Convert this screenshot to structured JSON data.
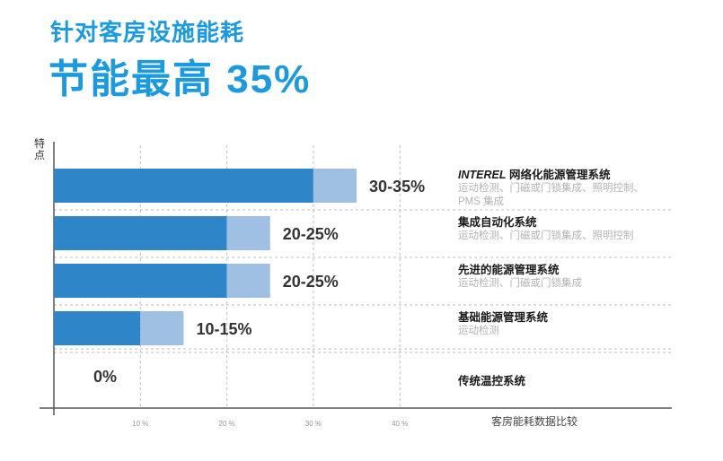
{
  "header": {
    "subtitle": "针对客房设施能耗",
    "headline": "节能最高 35%"
  },
  "colors": {
    "accent": "#1b9ae0",
    "bar_dark": "#2e86c8",
    "bar_light": "#9fbfe3",
    "grid": "#bdbdbd",
    "axis": "#555555"
  },
  "chart_data": {
    "type": "bar",
    "orientation": "horizontal",
    "stacked": true,
    "ylabel": "特点",
    "xlabel": "客房能耗数据比较",
    "xlim": [
      0,
      50
    ],
    "xticks": [
      10,
      20,
      30,
      40
    ],
    "xtick_labels": [
      "10 %",
      "20 %",
      "30 %",
      "40 %"
    ],
    "grid": true,
    "categories": [
      {
        "title_brand": "INTEREL",
        "title": " 网络化能源管理系统",
        "desc": "运动检测、门磁或门锁集成、照明控制、PMS 集成",
        "low": 30,
        "high": 35,
        "label": "30-35%"
      },
      {
        "title_brand": "",
        "title": "集成自动化系统",
        "desc": "运动检测、门磁或门锁集成、照明控制",
        "low": 20,
        "high": 25,
        "label": "20-25%"
      },
      {
        "title_brand": "",
        "title": "先进的能源管理系统",
        "desc": "运动检测、门磁或门锁集成",
        "low": 20,
        "high": 25,
        "label": "20-25%"
      },
      {
        "title_brand": "",
        "title": "基础能源管理系统",
        "desc": "运动检测",
        "low": 10,
        "high": 15,
        "label": "10-15%"
      },
      {
        "title_brand": "",
        "title": "传统温控系统",
        "desc": "",
        "low": 0,
        "high": 0,
        "label": "0%"
      }
    ]
  }
}
